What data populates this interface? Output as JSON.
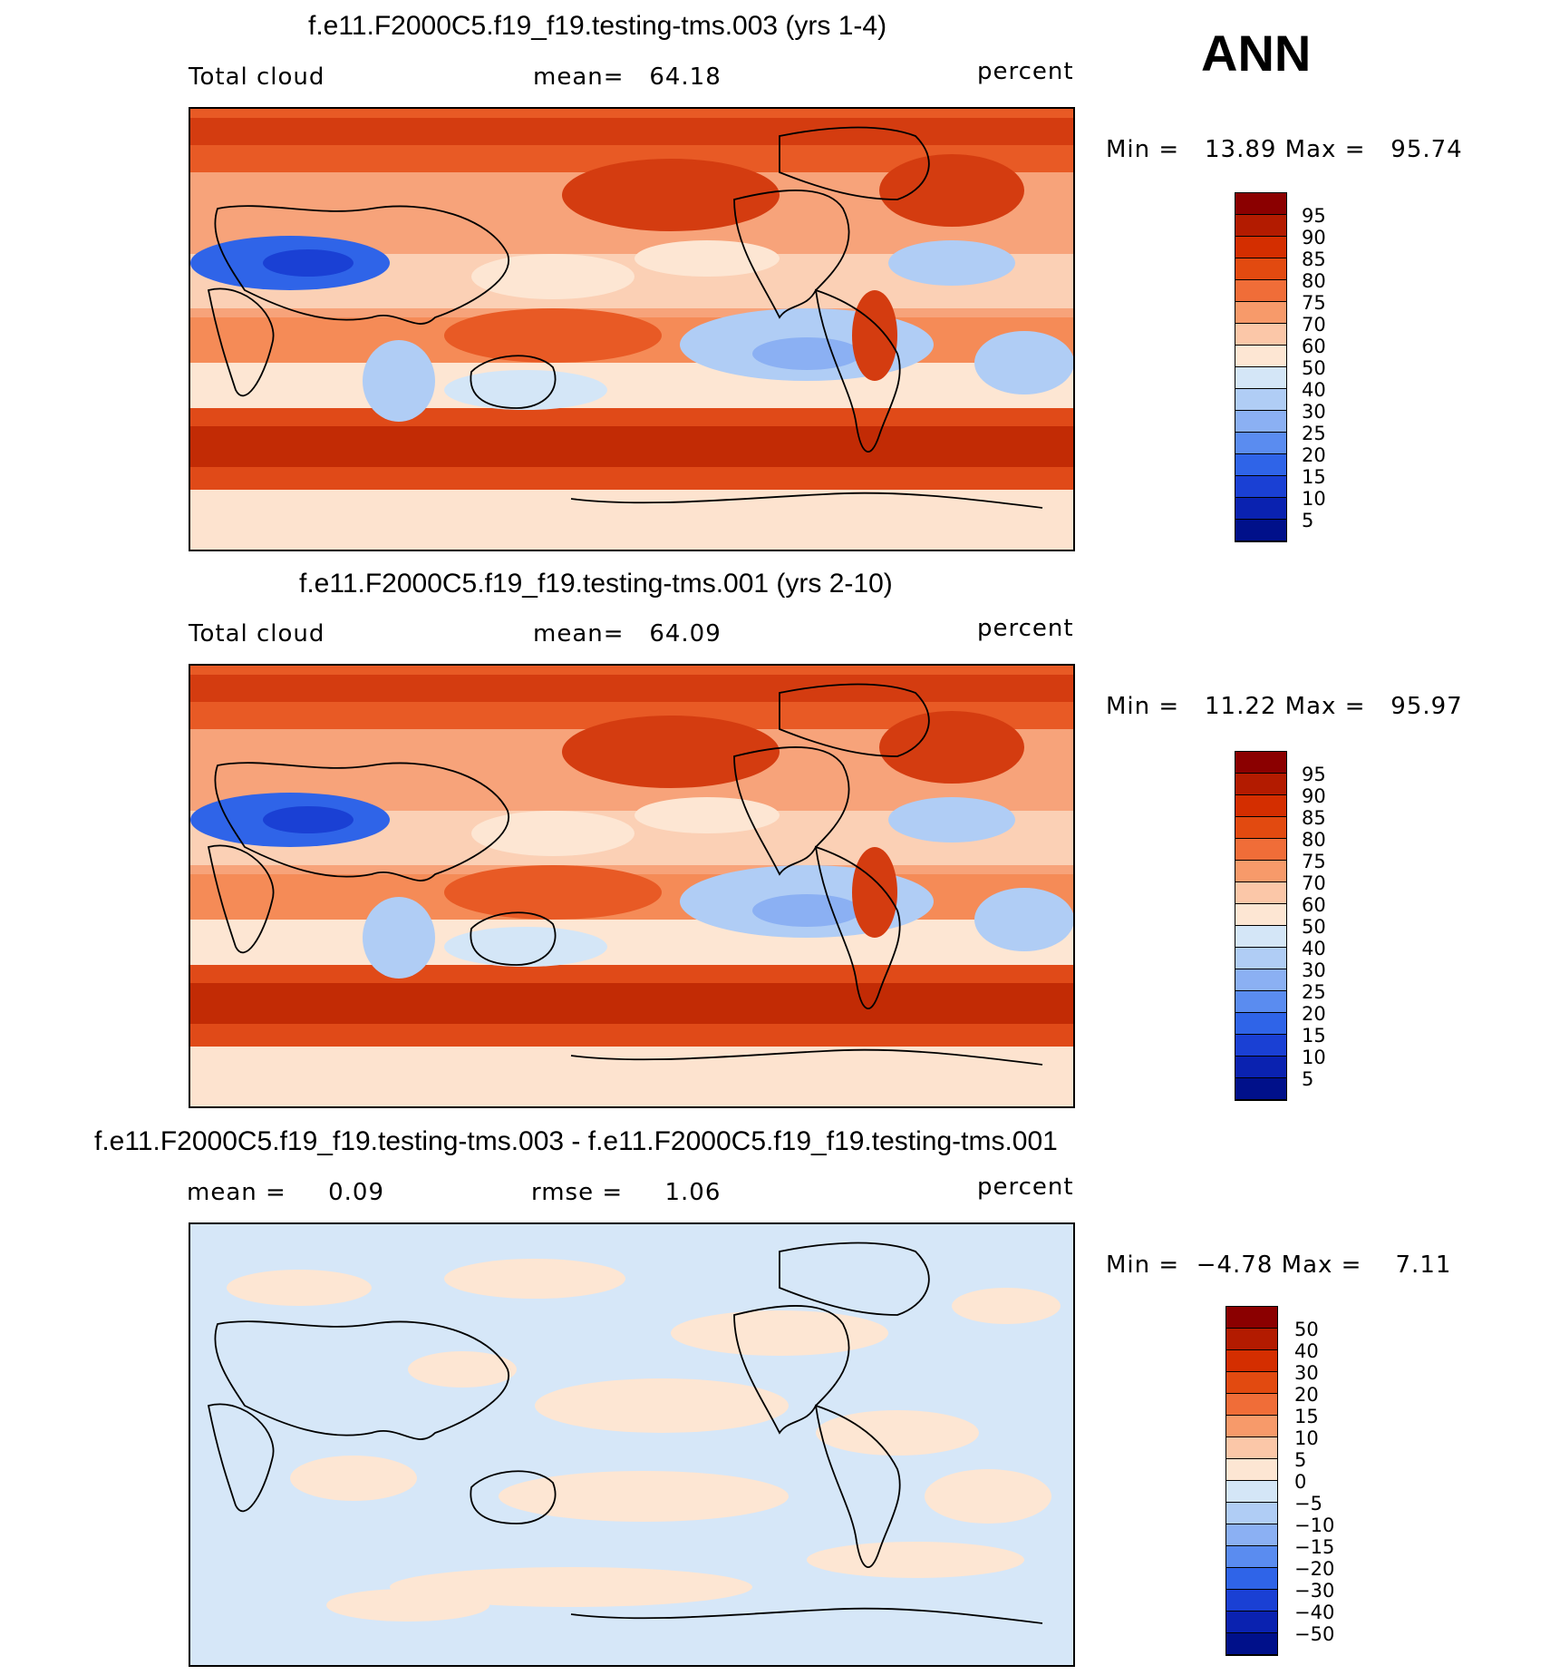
{
  "season": "ANN",
  "panels": [
    {
      "title": "f.e11.F2000C5.f19_f19.testing-tms.003 (yrs 1-4)",
      "left_label": "Total cloud",
      "center_label": "mean=",
      "center_value": "64.18",
      "units": "percent",
      "minmax": "Min =   13.89 Max =   95.74",
      "colorbar_labels": [
        "95",
        "90",
        "85",
        "80",
        "75",
        "70",
        "60",
        "50",
        "40",
        "30",
        "25",
        "20",
        "15",
        "10",
        "5"
      ]
    },
    {
      "title": "f.e11.F2000C5.f19_f19.testing-tms.001 (yrs 2-10)",
      "left_label": "Total cloud",
      "center_label": "mean=",
      "center_value": "64.09",
      "units": "percent",
      "minmax": "Min =   11.22 Max =   95.97",
      "colorbar_labels": [
        "95",
        "90",
        "85",
        "80",
        "75",
        "70",
        "60",
        "50",
        "40",
        "30",
        "25",
        "20",
        "15",
        "10",
        "5"
      ]
    },
    {
      "title": "f.e11.F2000C5.f19_f19.testing-tms.003 - f.e11.F2000C5.f19_f19.testing-tms.001",
      "left_label": "mean =",
      "left_value": "0.09",
      "center_label": "rmse =",
      "center_value": "1.06",
      "units": "percent",
      "minmax": "Min =  −4.78 Max =    7.11",
      "colorbar_labels": [
        "50",
        "40",
        "30",
        "20",
        "15",
        "10",
        "5",
        "0",
        "−5",
        "−10",
        "−15",
        "−20",
        "−30",
        "−40",
        "−50"
      ]
    }
  ],
  "colors": {
    "colorbar": [
      "#8b0000",
      "#b31b00",
      "#d42e00",
      "#e24a10",
      "#f06d38",
      "#f79a6a",
      "#fbc7a8",
      "#fde6d3",
      "#d4e6f7",
      "#b0cdf5",
      "#8bb0f3",
      "#5a8cf0",
      "#2f64e8",
      "#1a40d4",
      "#0a22b0",
      "#00108a"
    ],
    "ocean_mid": "#f7b08a",
    "land_outline": "#000000"
  }
}
